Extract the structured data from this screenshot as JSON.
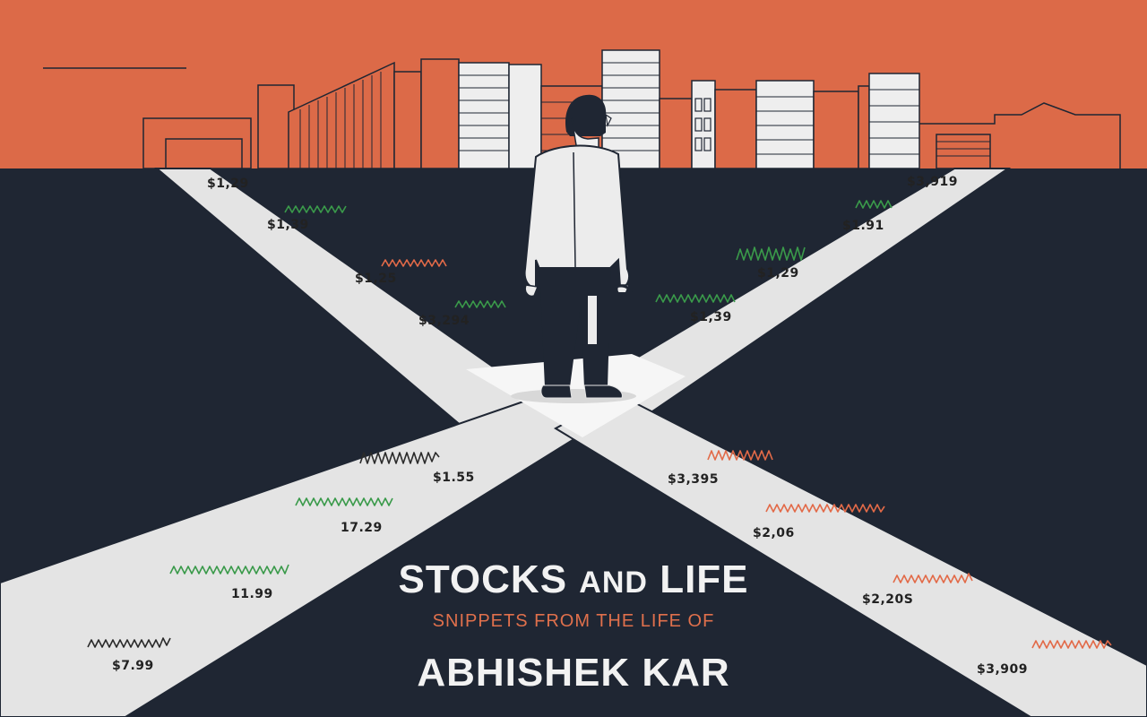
{
  "title": {
    "line1_a": "STOCKS",
    "line1_and": "AND",
    "line1_b": "LIFE",
    "subtitle": "SNIPPETS FROM THE LIFE OF",
    "name": "ABHISHEK KAR"
  },
  "prices": [
    "$1,29",
    "$1,39",
    "$1,25",
    "$3,294",
    "$3,919",
    "$1.91",
    "$1,29",
    "$1,39",
    "$1.55",
    "17.29",
    "11.99",
    "$7.99",
    "$3,395",
    "$2,06",
    "$2,20S",
    "$3,909"
  ],
  "colors": {
    "sky": "#dc6a48",
    "ground": "#1f2633",
    "road": "#e4e4e4",
    "up_squiggle": "#3a9a4a",
    "down_squiggle": "#e26a48",
    "neutral_squiggle": "#2b2b2b"
  }
}
